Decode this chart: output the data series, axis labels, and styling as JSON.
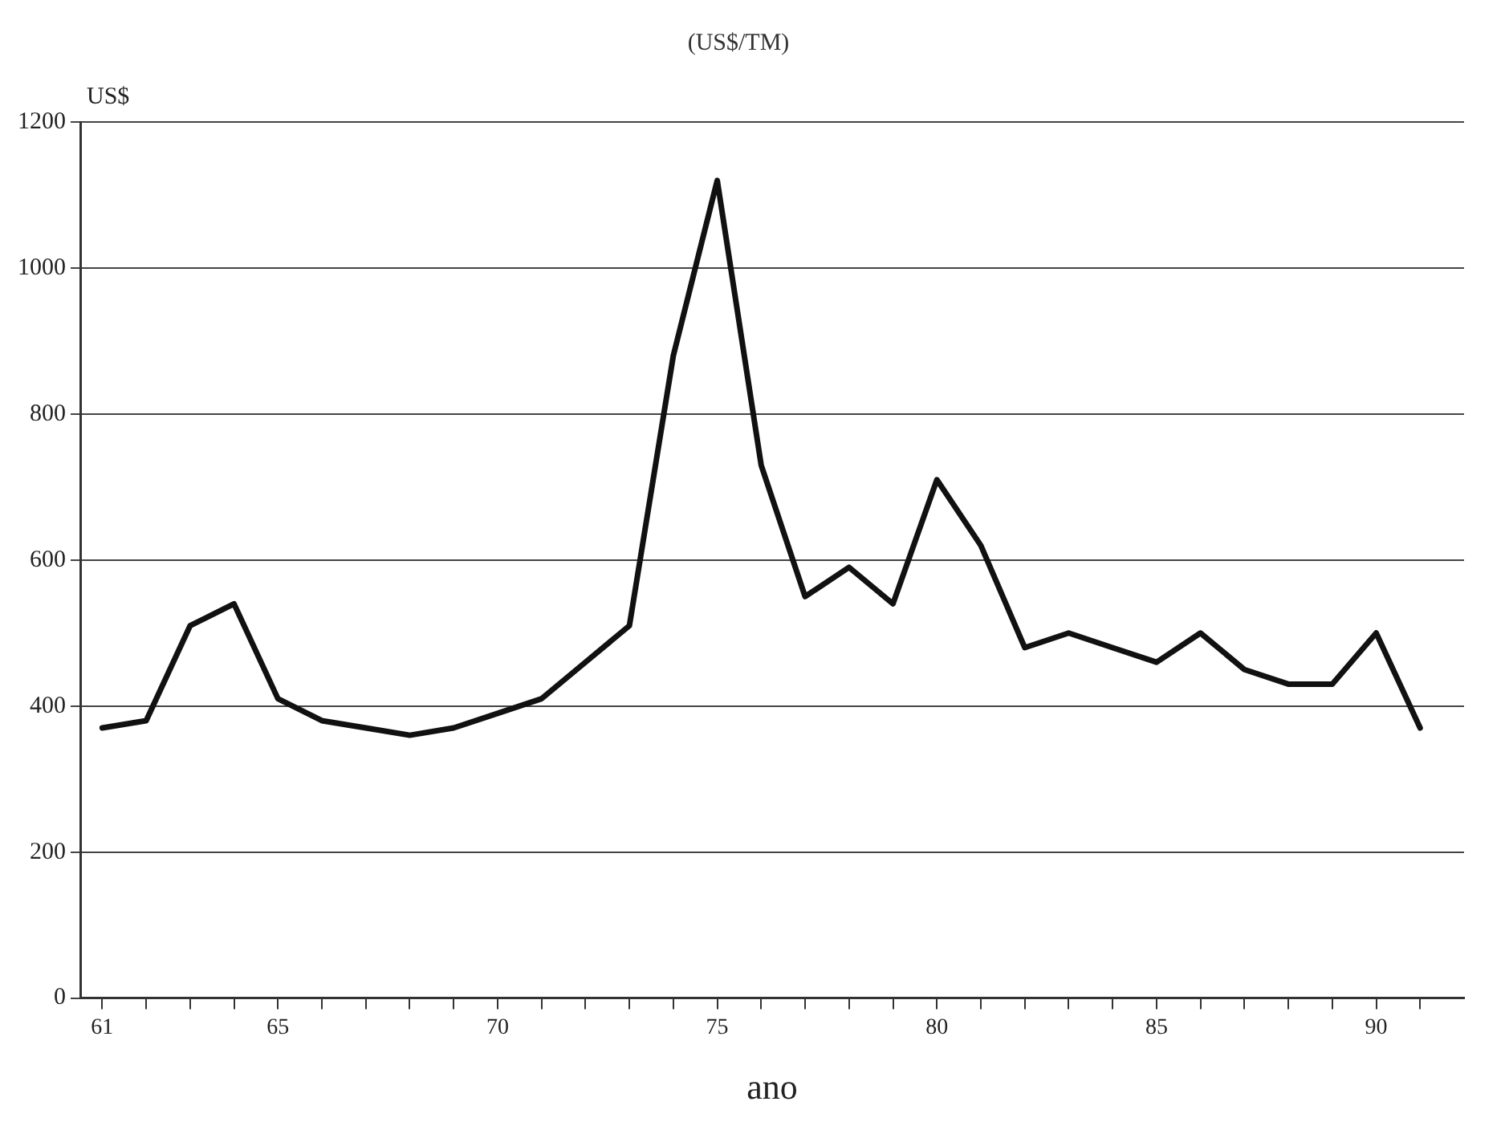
{
  "chart_data": {
    "type": "line",
    "title": "(US$/TM)",
    "xlabel": "ano",
    "ylabel": "US$",
    "x": [
      61,
      62,
      63,
      64,
      65,
      66,
      67,
      68,
      69,
      70,
      71,
      72,
      73,
      74,
      75,
      76,
      77,
      78,
      79,
      80,
      81,
      82,
      83,
      84,
      85,
      86,
      87,
      88,
      89,
      90,
      91
    ],
    "series": [
      {
        "color": "#111111",
        "values": [
          370,
          380,
          510,
          540,
          410,
          380,
          370,
          360,
          370,
          390,
          410,
          460,
          510,
          880,
          1120,
          730,
          550,
          590,
          540,
          710,
          620,
          480,
          500,
          480,
          460,
          500,
          450,
          430,
          430,
          500,
          370
        ]
      }
    ],
    "xlim": [
      60.5,
      92
    ],
    "xticks": [
      61,
      {
        "value": 62,
        "label": null
      },
      {
        "value": 63,
        "label": null
      },
      {
        "value": 64,
        "label": null
      },
      65,
      {
        "value": 66,
        "label": null
      },
      {
        "value": 67,
        "label": null
      },
      {
        "value": 68,
        "label": null
      },
      {
        "value": 69,
        "label": null
      },
      70,
      {
        "value": 71,
        "label": null
      },
      {
        "value": 72,
        "label": null
      },
      {
        "value": 73,
        "label": null
      },
      {
        "value": 74,
        "label": null
      },
      75,
      {
        "value": 76,
        "label": null
      },
      {
        "value": 77,
        "label": null
      },
      {
        "value": 78,
        "label": null
      },
      {
        "value": 79,
        "label": null
      },
      80,
      {
        "value": 81,
        "label": null
      },
      {
        "value": 82,
        "label": null
      },
      {
        "value": 83,
        "label": null
      },
      {
        "value": 84,
        "label": null
      },
      85,
      {
        "value": 86,
        "label": null
      },
      {
        "value": 87,
        "label": null
      },
      {
        "value": 88,
        "label": null
      },
      {
        "value": 89,
        "label": null
      },
      90,
      {
        "value": 91,
        "label": null
      }
    ],
    "ylim": [
      0,
      1200
    ],
    "yticks": [
      0,
      200,
      400,
      600,
      800,
      1000,
      1200
    ],
    "grid": "y",
    "legend": false,
    "marker": "none",
    "line_style": "solid"
  }
}
